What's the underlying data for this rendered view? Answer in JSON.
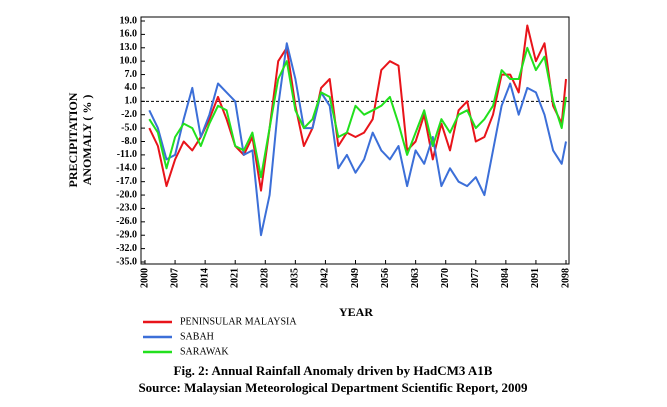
{
  "chart_data": {
    "type": "line",
    "y_label": [
      "PRECIPITATION",
      "ANOMALY ( % )"
    ],
    "x_label": "YEAR",
    "caption": [
      "Fig. 2: Annual Rainfall Anomaly driven by HadCM3 A1B",
      "Source: Malaysian Meteorological Department Scientific Report, 2009"
    ],
    "x": [
      2001,
      2003,
      2005,
      2007,
      2009,
      2011,
      2013,
      2015,
      2017,
      2019,
      2021,
      2023,
      2025,
      2027,
      2029,
      2031,
      2033,
      2035,
      2037,
      2039,
      2041,
      2043,
      2045,
      2047,
      2049,
      2051,
      2053,
      2055,
      2057,
      2059,
      2061,
      2063,
      2065,
      2067,
      2069,
      2071,
      2073,
      2075,
      2077,
      2079,
      2081,
      2083,
      2085,
      2087,
      2089,
      2091,
      2093,
      2095,
      2097,
      2098
    ],
    "series": [
      {
        "name": "PENINSULAR MALAYSIA",
        "color": "#e8141a",
        "values": [
          -5,
          -9,
          -18,
          -12,
          -8,
          -10,
          -7,
          -3,
          2,
          -3,
          -9,
          -11,
          -7,
          -19,
          -5,
          10,
          13,
          0,
          -9,
          -5,
          4,
          6,
          -9,
          -6,
          -7,
          -6,
          -3,
          8,
          10,
          9,
          -10,
          -8,
          -2,
          -12,
          -4,
          -10,
          -1,
          1,
          -8,
          -7,
          -2,
          7,
          7,
          3,
          18,
          10,
          14,
          0,
          -4,
          6
        ]
      },
      {
        "name": "SABAH",
        "color": "#3c6fd8",
        "values": [
          -1,
          -5,
          -12,
          -11,
          -3,
          4,
          -7,
          -2,
          5,
          3,
          1,
          -11,
          -10,
          -29,
          -20,
          0,
          14,
          6,
          -5,
          -5,
          3,
          0,
          -14,
          -11,
          -15,
          -12,
          -6,
          -10,
          -12,
          -9,
          -18,
          -10,
          -13,
          -7,
          -18,
          -14,
          -17,
          -18,
          -16,
          -20,
          -10,
          0,
          5,
          -2,
          4,
          3,
          -2,
          -10,
          -13,
          -8
        ]
      },
      {
        "name": "SARAWAK",
        "color": "#22e01e",
        "values": [
          -3,
          -6,
          -14,
          -7,
          -4,
          -5,
          -9,
          -4,
          0,
          -1,
          -9,
          -10,
          -6,
          -16,
          -5,
          6,
          10,
          -1,
          -5,
          -3,
          3,
          2,
          -7,
          -6,
          0,
          -2,
          -1,
          0,
          2,
          -4,
          -11,
          -6,
          -1,
          -9,
          -3,
          -6,
          -2,
          -1,
          -5,
          -3,
          0,
          8,
          6,
          6,
          13,
          8,
          11,
          1,
          -5,
          2
        ]
      }
    ],
    "xlim": [
      2000,
      2098
    ],
    "xticks": [
      2000,
      2007,
      2014,
      2021,
      2028,
      2035,
      2042,
      2049,
      2056,
      2063,
      2070,
      2077,
      2084,
      2091,
      2098
    ],
    "ylim": [
      -35,
      19
    ],
    "yticks": [
      {
        "value": 19,
        "label": "19.0"
      },
      {
        "value": 16,
        "label": "16.0"
      },
      {
        "value": 13,
        "label": "13.0"
      },
      {
        "value": 10,
        "label": "10.0"
      },
      {
        "value": 7,
        "label": "7.0"
      },
      {
        "value": 4,
        "label": "4.0"
      },
      {
        "value": 1,
        "label": "1.0"
      },
      {
        "value": -2,
        "label": "-2.0"
      },
      {
        "value": -5,
        "label": "-5.0"
      },
      {
        "value": -8,
        "label": "-8.0"
      },
      {
        "value": -11,
        "label": "-11.0"
      },
      {
        "value": -14,
        "label": "-14.0"
      },
      {
        "value": -17,
        "label": "-17.0"
      },
      {
        "value": -20,
        "label": "-20.0"
      },
      {
        "value": -23,
        "label": "-23.0"
      },
      {
        "value": -26,
        "label": "-26.0"
      },
      {
        "value": -29,
        "label": "-29.0"
      },
      {
        "value": -32,
        "label": "-32.0"
      },
      {
        "value": -35,
        "label": "-35.0"
      }
    ],
    "reference_line": 1,
    "grid": false,
    "legend": "below-left"
  }
}
